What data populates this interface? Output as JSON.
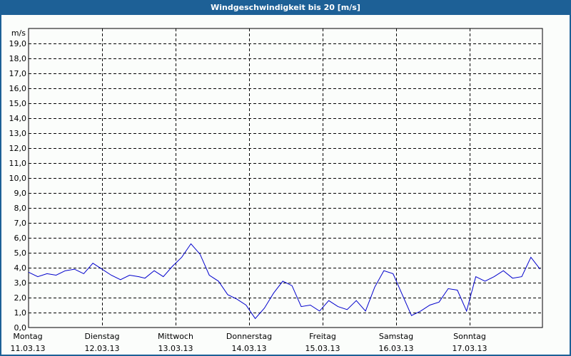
{
  "window": {
    "title": "Windgeschwindigkeit bis 20 [m/s]"
  },
  "colors": {
    "titlebar": "#1d6096",
    "background": "#fbfdfb",
    "line": "#0000cc",
    "grid": "#000000"
  },
  "chart_data": {
    "type": "line",
    "title": "Windgeschwindigkeit bis 20 [m/s]",
    "xlabel": "",
    "ylabel": "m/s",
    "ylim": [
      0,
      20
    ],
    "grid": true,
    "y_ticks": [
      "0,0",
      "1,0",
      "2,0",
      "3,0",
      "4,0",
      "5,0",
      "6,0",
      "7,0",
      "8,0",
      "9,0",
      "10,0",
      "11,0",
      "12,0",
      "13,0",
      "14,0",
      "15,0",
      "16,0",
      "17,0",
      "18,0",
      "19,0"
    ],
    "x_ticks": [
      {
        "day": "Montag",
        "date": "11.03.13"
      },
      {
        "day": "Dienstag",
        "date": "12.03.13"
      },
      {
        "day": "Mittwoch",
        "date": "13.03.13"
      },
      {
        "day": "Donnerstag",
        "date": "14.03.13"
      },
      {
        "day": "Freitag",
        "date": "15.03.13"
      },
      {
        "day": "Samstag",
        "date": "16.03.13"
      },
      {
        "day": "Sonntag",
        "date": "17.03.13"
      }
    ],
    "series": [
      {
        "name": "Windgeschwindigkeit",
        "x_hours": [
          0,
          3,
          6,
          9,
          12,
          15,
          18,
          21,
          24,
          27,
          30,
          33,
          36,
          38,
          41,
          44,
          47,
          50,
          53,
          56,
          59,
          62,
          65,
          68,
          71,
          74,
          77,
          80,
          83,
          86,
          89,
          92,
          95,
          98,
          101,
          104,
          107,
          110,
          113,
          116,
          119,
          122,
          125,
          128,
          131,
          134,
          137,
          140,
          143,
          146,
          149,
          152,
          155,
          158,
          161,
          164,
          167
        ],
        "values": [
          3.7,
          3.4,
          3.6,
          3.5,
          3.8,
          3.9,
          3.6,
          4.3,
          3.9,
          3.5,
          3.2,
          3.5,
          3.4,
          3.3,
          3.8,
          3.4,
          4.1,
          4.7,
          5.6,
          4.9,
          3.5,
          3.1,
          2.2,
          1.9,
          1.5,
          0.6,
          1.3,
          2.3,
          3.1,
          2.8,
          1.4,
          1.5,
          1.1,
          1.8,
          1.4,
          1.2,
          1.8,
          1.1,
          2.7,
          3.8,
          3.6,
          2.2,
          0.8,
          1.1,
          1.5,
          1.7,
          2.6,
          2.5,
          1.1,
          3.4,
          3.1,
          3.4,
          3.8,
          3.3,
          3.4,
          4.7,
          3.9
        ]
      }
    ]
  }
}
